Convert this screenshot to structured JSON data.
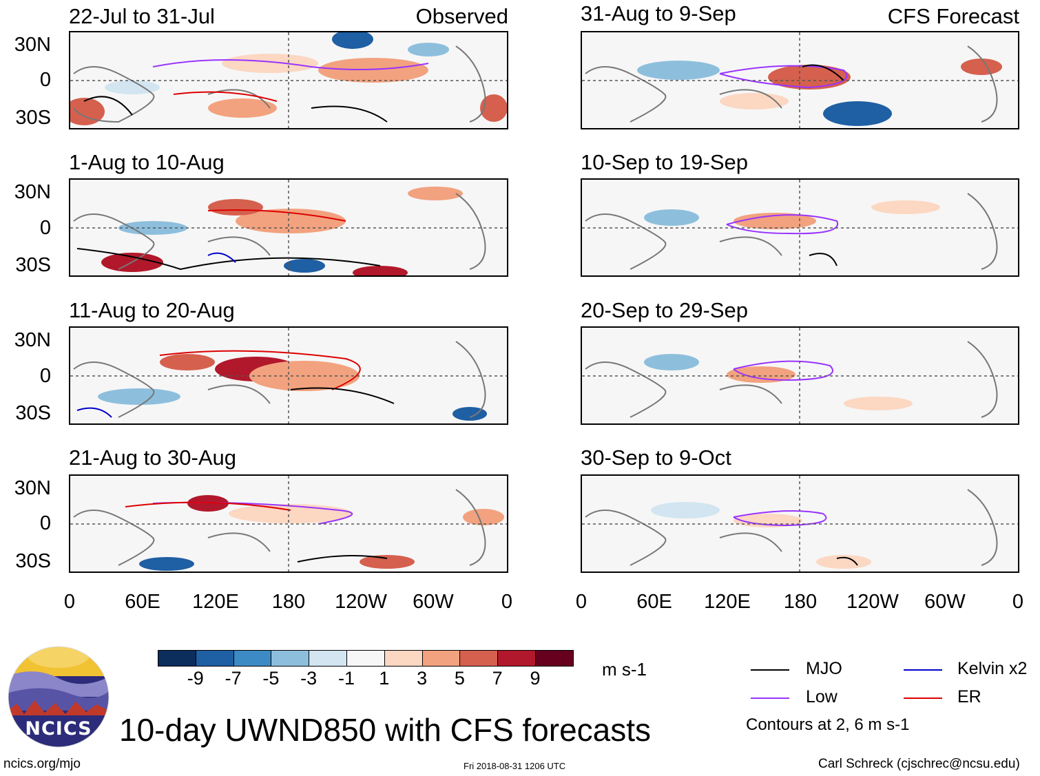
{
  "header": {
    "observed_label": "Observed",
    "forecast_label": "CFS Forecast"
  },
  "panels_observed": [
    {
      "title": "22-Jul to 31-Jul"
    },
    {
      "title": "1-Aug to 10-Aug"
    },
    {
      "title": "11-Aug to 20-Aug"
    },
    {
      "title": "21-Aug to 30-Aug"
    }
  ],
  "panels_forecast": [
    {
      "title": "31-Aug to 9-Sep"
    },
    {
      "title": "10-Sep to 19-Sep"
    },
    {
      "title": "20-Sep to 29-Sep"
    },
    {
      "title": "30-Sep to 9-Oct"
    }
  ],
  "axes": {
    "lat_labels": [
      "30N",
      "0",
      "30S"
    ],
    "lon_labels": [
      "0",
      "60E",
      "120E",
      "180",
      "120W",
      "60W",
      "0"
    ]
  },
  "colorbar": {
    "colors": [
      "#0b2e5c",
      "#1f5fa3",
      "#3d8bc4",
      "#8dbfdd",
      "#d2e5f1",
      "#f7f7f7",
      "#fcd7c2",
      "#f2a27f",
      "#d5604e",
      "#b2182b",
      "#67001f"
    ],
    "labels": [
      "-9",
      "-7",
      "-5",
      "-3",
      "-1",
      "1",
      "3",
      "5",
      "7",
      "9"
    ],
    "units": "m s-1"
  },
  "legend": {
    "items": [
      {
        "label": "MJO",
        "color": "#000000"
      },
      {
        "label": "Kelvin x2",
        "color": "#0000cc"
      },
      {
        "label": "Low",
        "color": "#9933ff"
      },
      {
        "label": "ER",
        "color": "#dd0000"
      }
    ],
    "note": "Contours at 2, 6 m s-1"
  },
  "logo": {
    "text": "NCICS"
  },
  "main_title": "10-day UWND850 with CFS forecasts",
  "footer": {
    "url": "ncics.org/mjo",
    "timestamp": "Fri 2018-08-31 1206 UTC",
    "author": "Carl Schreck (cjschrec@ncsu.edu)"
  }
}
